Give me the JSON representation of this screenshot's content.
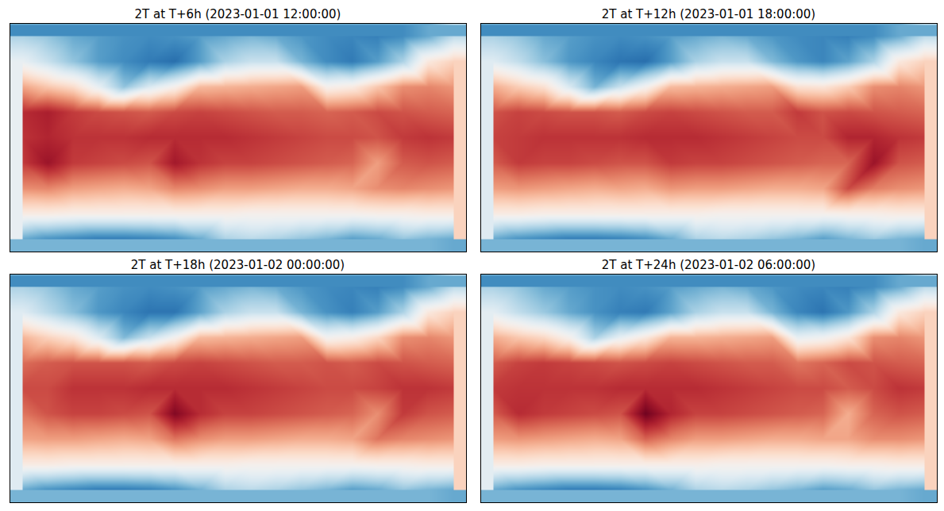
{
  "chart_data": [
    {
      "type": "heatmap",
      "title": "2T at T+6h (2023-01-01 12:00:00)",
      "color": "rdbu",
      "tick_labels": false,
      "xlim": [
        0,
        360
      ],
      "ylim": [
        -90,
        90
      ],
      "zlim": [
        230,
        312
      ],
      "x": [
        10,
        30,
        50,
        70,
        90,
        110,
        130,
        150,
        170,
        190,
        210,
        230,
        250,
        270,
        290,
        310,
        330,
        350
      ],
      "y": [
        80,
        60,
        40,
        20,
        0,
        -20,
        -40,
        -60,
        -80
      ],
      "values": [
        [
          258,
          255,
          250,
          248,
          246,
          245,
          246,
          248,
          250,
          252,
          250,
          247,
          245,
          244,
          243,
          245,
          250,
          260
        ],
        [
          268,
          262,
          255,
          248,
          245,
          242,
          240,
          248,
          258,
          262,
          262,
          252,
          245,
          242,
          248,
          258,
          275,
          280
        ],
        [
          287,
          282,
          278,
          268,
          255,
          265,
          272,
          284,
          285,
          286,
          287,
          288,
          272,
          274,
          282,
          290,
          291,
          289
        ],
        [
          302,
          304,
          300,
          298,
          297,
          296,
          298,
          299,
          298,
          297,
          296,
          296,
          295,
          296,
          298,
          297,
          296,
          295
        ],
        [
          301,
          303,
          301,
          301,
          301,
          302,
          302,
          302,
          302,
          301,
          300,
          299,
          298,
          298,
          297,
          300,
          301,
          300
        ],
        [
          300,
          306,
          300,
          299,
          298,
          297,
          305,
          301,
          299,
          299,
          298,
          297,
          296,
          295,
          288,
          296,
          297,
          296
        ],
        [
          290,
          291,
          288,
          287,
          286,
          287,
          291,
          290,
          288,
          288,
          287,
          286,
          286,
          287,
          290,
          291,
          290,
          289
        ],
        [
          274,
          274,
          273,
          273,
          273,
          273,
          273,
          273,
          273,
          272,
          272,
          272,
          272,
          272,
          273,
          273,
          274,
          274
        ],
        [
          250,
          246,
          244,
          242,
          242,
          243,
          245,
          250,
          258,
          260,
          258,
          255,
          252,
          248,
          250,
          255,
          252,
          250
        ]
      ]
    },
    {
      "type": "heatmap",
      "title": "2T at T+12h (2023-01-01 18:00:00)",
      "color": "rdbu",
      "tick_labels": false,
      "xlim": [
        0,
        360
      ],
      "ylim": [
        -90,
        90
      ],
      "zlim": [
        230,
        312
      ],
      "x": [
        10,
        30,
        50,
        70,
        90,
        110,
        130,
        150,
        170,
        190,
        210,
        230,
        250,
        270,
        290,
        310,
        330,
        350
      ],
      "y": [
        80,
        60,
        40,
        20,
        0,
        -20,
        -40,
        -60,
        -80
      ],
      "values": [
        [
          258,
          255,
          250,
          248,
          246,
          245,
          246,
          248,
          250,
          252,
          250,
          247,
          245,
          244,
          243,
          245,
          250,
          260
        ],
        [
          266,
          261,
          254,
          247,
          244,
          241,
          240,
          248,
          258,
          262,
          262,
          253,
          247,
          244,
          249,
          258,
          275,
          280
        ],
        [
          286,
          281,
          277,
          265,
          252,
          262,
          271,
          284,
          285,
          286,
          287,
          288,
          277,
          276,
          281,
          290,
          291,
          289
        ],
        [
          297,
          299,
          298,
          297,
          297,
          296,
          298,
          299,
          298,
          297,
          296,
          296,
          300,
          297,
          298,
          297,
          296,
          295
        ],
        [
          299,
          300,
          301,
          301,
          301,
          301,
          302,
          302,
          302,
          301,
          300,
          299,
          298,
          298,
          303,
          303,
          301,
          300
        ],
        [
          296,
          300,
          299,
          299,
          298,
          297,
          297,
          300,
          299,
          299,
          298,
          297,
          296,
          295,
          295,
          306,
          297,
          296
        ],
        [
          288,
          289,
          288,
          287,
          286,
          287,
          286,
          289,
          288,
          288,
          287,
          286,
          286,
          287,
          298,
          292,
          290,
          289
        ],
        [
          274,
          274,
          273,
          273,
          273,
          273,
          273,
          273,
          273,
          272,
          272,
          272,
          272,
          272,
          273,
          273,
          274,
          274
        ],
        [
          250,
          246,
          244,
          242,
          242,
          243,
          245,
          250,
          258,
          260,
          258,
          255,
          252,
          248,
          252,
          256,
          252,
          250
        ]
      ]
    },
    {
      "type": "heatmap",
      "title": "2T at T+18h (2023-01-02 00:00:00)",
      "color": "rdbu",
      "tick_labels": false,
      "xlim": [
        0,
        360
      ],
      "ylim": [
        -90,
        90
      ],
      "zlim": [
        230,
        312
      ],
      "x": [
        10,
        30,
        50,
        70,
        90,
        110,
        130,
        150,
        170,
        190,
        210,
        230,
        250,
        270,
        290,
        310,
        330,
        350
      ],
      "y": [
        80,
        60,
        40,
        20,
        0,
        -20,
        -40,
        -60,
        -80
      ],
      "values": [
        [
          258,
          255,
          250,
          248,
          246,
          245,
          246,
          248,
          250,
          252,
          250,
          247,
          245,
          244,
          243,
          245,
          250,
          260
        ],
        [
          266,
          260,
          254,
          247,
          244,
          241,
          241,
          249,
          258,
          262,
          262,
          252,
          246,
          243,
          248,
          258,
          275,
          280
        ],
        [
          285,
          280,
          276,
          266,
          253,
          262,
          271,
          284,
          285,
          286,
          287,
          288,
          271,
          273,
          279,
          290,
          291,
          289
        ],
        [
          294,
          296,
          297,
          297,
          297,
          296,
          298,
          299,
          298,
          297,
          296,
          296,
          297,
          296,
          298,
          297,
          296,
          295
        ],
        [
          298,
          298,
          301,
          301,
          301,
          302,
          302,
          302,
          302,
          301,
          300,
          299,
          298,
          298,
          299,
          301,
          301,
          300
        ],
        [
          293,
          297,
          299,
          299,
          298,
          297,
          309,
          302,
          299,
          299,
          298,
          297,
          296,
          295,
          290,
          300,
          297,
          296
        ],
        [
          287,
          288,
          288,
          287,
          286,
          287,
          293,
          290,
          288,
          288,
          287,
          286,
          286,
          287,
          293,
          291,
          290,
          289
        ],
        [
          274,
          274,
          273,
          273,
          273,
          273,
          273,
          273,
          273,
          272,
          272,
          272,
          272,
          272,
          273,
          273,
          274,
          274
        ],
        [
          250,
          246,
          244,
          242,
          242,
          243,
          246,
          251,
          258,
          260,
          258,
          255,
          252,
          248,
          250,
          255,
          252,
          250
        ]
      ]
    },
    {
      "type": "heatmap",
      "title": "2T at T+24h (2023-01-02 06:00:00)",
      "color": "rdbu",
      "tick_labels": false,
      "xlim": [
        0,
        360
      ],
      "ylim": [
        -90,
        90
      ],
      "zlim": [
        230,
        312
      ],
      "x": [
        10,
        30,
        50,
        70,
        90,
        110,
        130,
        150,
        170,
        190,
        210,
        230,
        250,
        270,
        290,
        310,
        330,
        350
      ],
      "y": [
        80,
        60,
        40,
        20,
        0,
        -20,
        -40,
        -60,
        -80
      ],
      "values": [
        [
          258,
          255,
          250,
          248,
          246,
          245,
          246,
          248,
          250,
          252,
          250,
          247,
          245,
          244,
          243,
          245,
          250,
          260
        ],
        [
          267,
          261,
          256,
          250,
          246,
          243,
          242,
          249,
          258,
          262,
          262,
          252,
          244,
          241,
          247,
          258,
          275,
          280
        ],
        [
          286,
          282,
          279,
          272,
          258,
          268,
          275,
          285,
          285,
          286,
          287,
          288,
          268,
          270,
          276,
          290,
          291,
          289
        ],
        [
          296,
          299,
          300,
          299,
          298,
          297,
          298,
          299,
          298,
          297,
          296,
          296,
          293,
          295,
          298,
          297,
          296,
          295
        ],
        [
          300,
          301,
          301,
          301,
          301,
          302,
          302,
          302,
          302,
          301,
          300,
          299,
          298,
          298,
          296,
          298,
          301,
          300
        ],
        [
          296,
          302,
          300,
          299,
          298,
          297,
          311,
          303,
          299,
          299,
          298,
          297,
          296,
          295,
          286,
          295,
          297,
          296
        ],
        [
          288,
          289,
          288,
          287,
          286,
          287,
          295,
          291,
          288,
          288,
          287,
          286,
          286,
          287,
          287,
          290,
          290,
          289
        ],
        [
          274,
          274,
          273,
          273,
          273,
          273,
          273,
          273,
          273,
          272,
          272,
          272,
          272,
          272,
          273,
          273,
          274,
          274
        ],
        [
          250,
          246,
          244,
          242,
          242,
          243,
          246,
          251,
          258,
          260,
          258,
          255,
          252,
          248,
          250,
          255,
          252,
          250
        ]
      ]
    }
  ]
}
